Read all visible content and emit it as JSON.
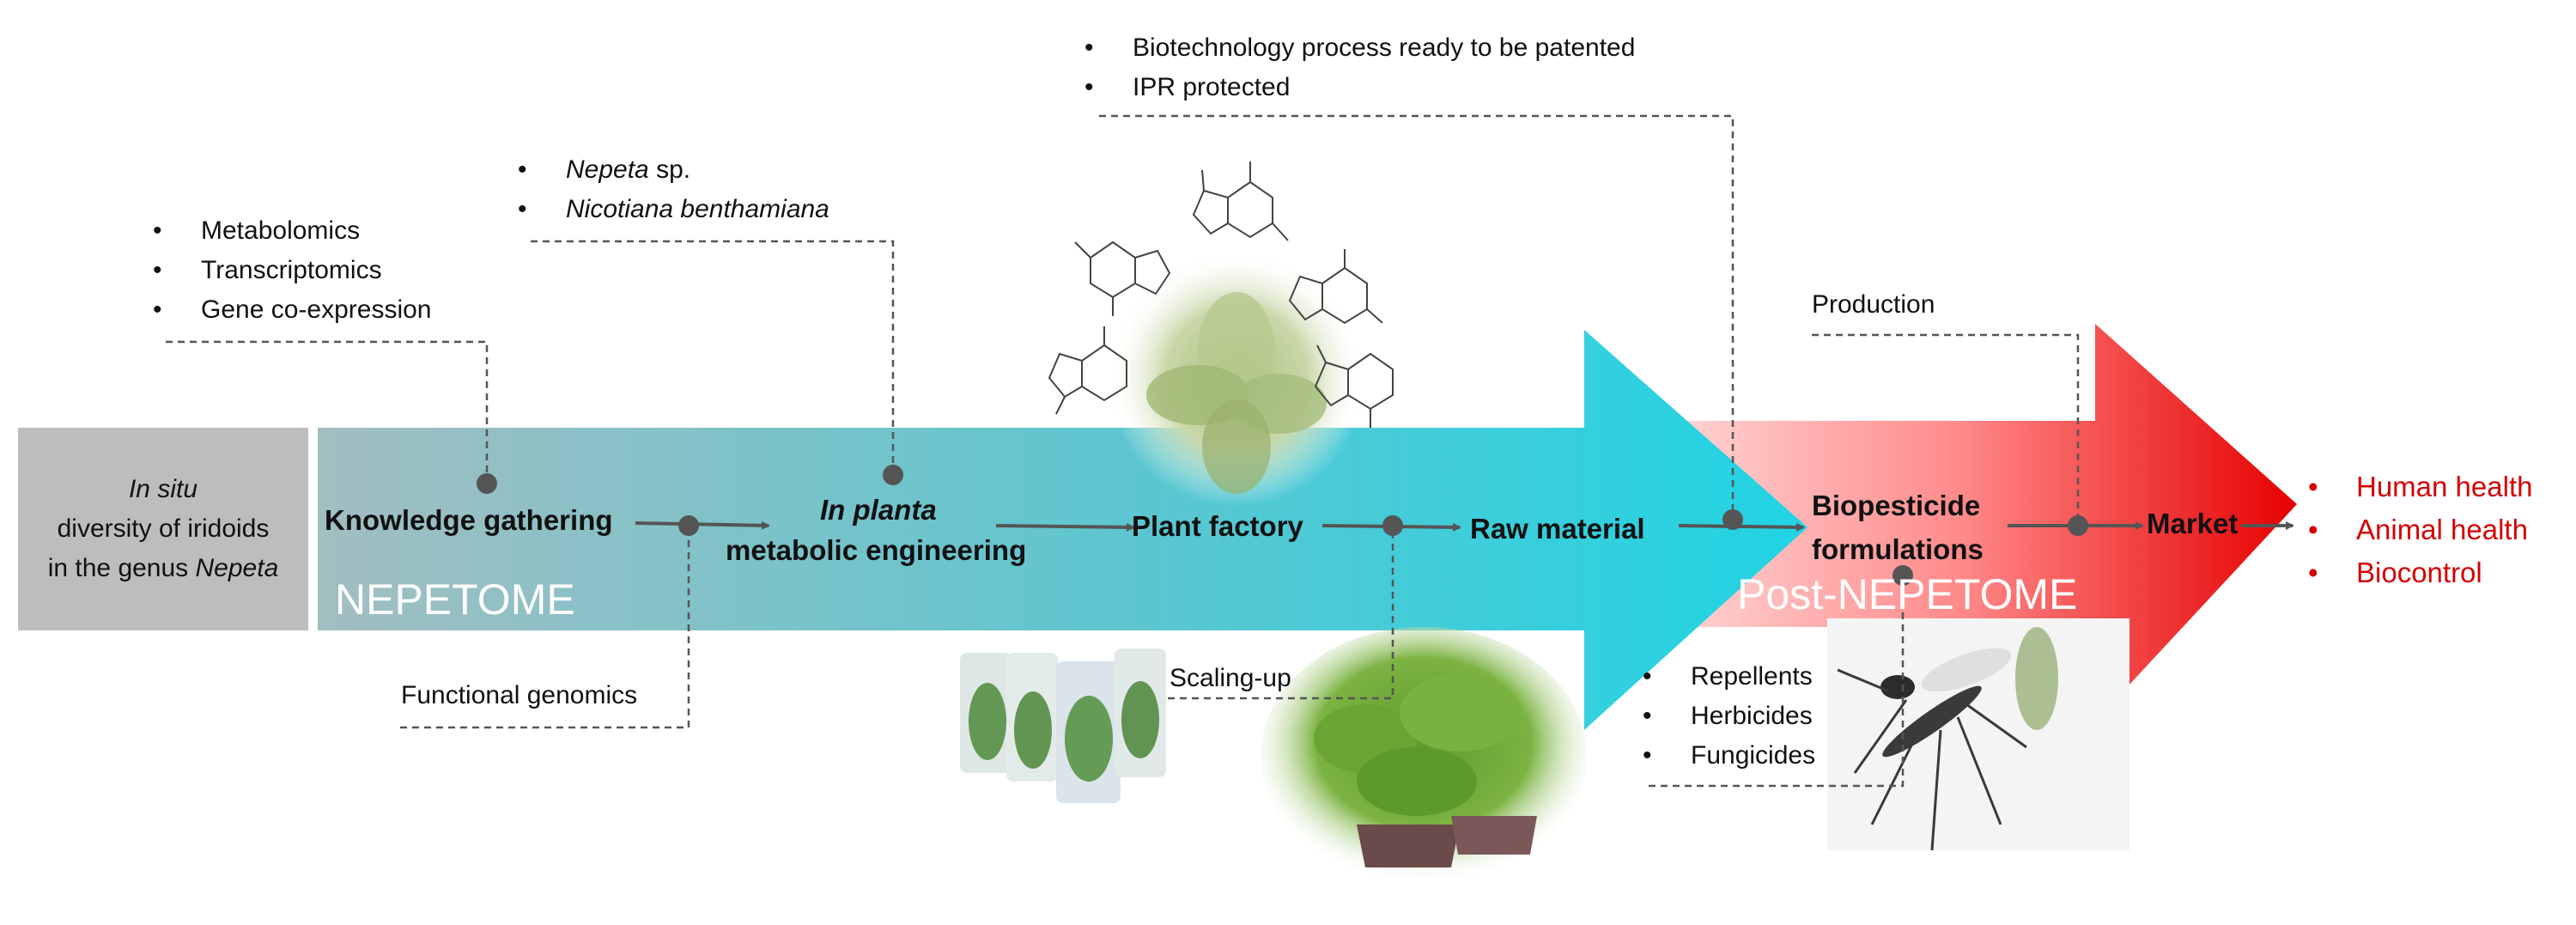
{
  "in_situ": {
    "line1": "In situ",
    "line2": "diversity of iridoids",
    "line3_pre": "in the genus ",
    "line3_genus": "Nepeta"
  },
  "phases": {
    "nepetome": "NEPETOME",
    "post_nepetome": "Post-NEPETOME"
  },
  "stages": {
    "knowledge": "Knowledge gathering",
    "inplanta_italic": "In planta",
    "inplanta_rest": "metabolic engineering",
    "plant_factory": "Plant factory",
    "raw_material": "Raw material",
    "biopesticide_1": "Biopesticide",
    "biopesticide_2": "formulations",
    "market": "Market"
  },
  "omics": [
    "Metabolomics",
    "Transcriptomics",
    "Gene co-expression"
  ],
  "species": {
    "nepeta_italic": "Nepeta",
    "nepeta_rest": " sp.",
    "nicotiana": "Nicotiana benthamiana"
  },
  "ipr": [
    "Biotechnology process ready to be patented",
    "IPR protected"
  ],
  "production": "Production",
  "functional_genomics": "Functional genomics",
  "scaling_up": "Scaling-up",
  "products": [
    "Repellents",
    "Herbicides",
    "Fungicides"
  ],
  "outcomes": [
    "Human health",
    "Animal health",
    "Biocontrol"
  ],
  "colors": {
    "nepetome_start": "#9fbcbf",
    "nepetome_end": "#22d3e2",
    "post_start": "#ffc4c4",
    "post_end": "#e80000",
    "outcome_red": "#d40000",
    "grey_box": "#bdbdbd",
    "connector": "#555555"
  }
}
